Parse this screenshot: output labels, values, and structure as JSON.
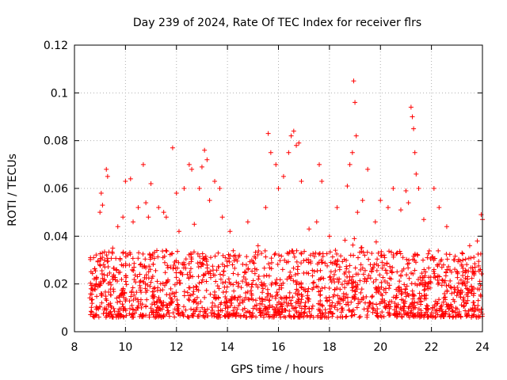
{
  "chart_data": {
    "type": "scatter",
    "title": "Day 239 of 2024, Rate Of TEC Index for receiver flrs",
    "xlabel": "GPS time / hours",
    "ylabel": "ROTI / TECUs",
    "xlim": [
      8,
      24
    ],
    "ylim": [
      0,
      0.12
    ],
    "x_ticks": [
      8,
      10,
      12,
      14,
      16,
      18,
      20,
      22,
      24
    ],
    "x_tick_labels": [
      "8",
      "10",
      "12",
      "14",
      "16",
      "18",
      "20",
      "22",
      "24"
    ],
    "y_ticks": [
      0,
      0.02,
      0.04,
      0.06,
      0.08,
      0.1,
      0.12
    ],
    "y_tick_labels": [
      "0",
      "0.02",
      "0.04",
      "0.06",
      "0.08",
      "0.1",
      "0.12"
    ],
    "grid": true,
    "marker": "+",
    "marker_color": "#ff0000",
    "series": [
      {
        "name": "ROTI",
        "points": [
          [
            8.65,
            0.018
          ],
          [
            8.75,
            0.031
          ],
          [
            8.85,
            0.022
          ],
          [
            9.0,
            0.05
          ],
          [
            9.05,
            0.058
          ],
          [
            9.1,
            0.053
          ],
          [
            9.25,
            0.068
          ],
          [
            9.3,
            0.065
          ],
          [
            9.5,
            0.035
          ],
          [
            9.7,
            0.044
          ],
          [
            9.9,
            0.048
          ],
          [
            10.0,
            0.063
          ],
          [
            10.2,
            0.064
          ],
          [
            10.3,
            0.046
          ],
          [
            10.5,
            0.052
          ],
          [
            10.7,
            0.07
          ],
          [
            10.8,
            0.054
          ],
          [
            10.9,
            0.048
          ],
          [
            11.0,
            0.062
          ],
          [
            11.3,
            0.052
          ],
          [
            11.5,
            0.05
          ],
          [
            11.6,
            0.048
          ],
          [
            11.85,
            0.077
          ],
          [
            12.0,
            0.058
          ],
          [
            12.1,
            0.042
          ],
          [
            12.3,
            0.06
          ],
          [
            12.5,
            0.07
          ],
          [
            12.6,
            0.068
          ],
          [
            12.7,
            0.045
          ],
          [
            12.9,
            0.06
          ],
          [
            13.0,
            0.069
          ],
          [
            13.1,
            0.076
          ],
          [
            13.2,
            0.072
          ],
          [
            13.3,
            0.055
          ],
          [
            13.5,
            0.063
          ],
          [
            13.7,
            0.06
          ],
          [
            13.8,
            0.048
          ],
          [
            14.1,
            0.042
          ],
          [
            14.3,
            0.032
          ],
          [
            14.8,
            0.046
          ],
          [
            15.2,
            0.036
          ],
          [
            15.5,
            0.052
          ],
          [
            15.6,
            0.083
          ],
          [
            15.7,
            0.075
          ],
          [
            15.9,
            0.07
          ],
          [
            16.0,
            0.06
          ],
          [
            16.2,
            0.065
          ],
          [
            16.4,
            0.075
          ],
          [
            16.5,
            0.082
          ],
          [
            16.6,
            0.084
          ],
          [
            16.7,
            0.078
          ],
          [
            16.8,
            0.079
          ],
          [
            16.9,
            0.063
          ],
          [
            17.2,
            0.043
          ],
          [
            17.5,
            0.046
          ],
          [
            17.6,
            0.07
          ],
          [
            17.7,
            0.063
          ],
          [
            18.0,
            0.04
          ],
          [
            18.3,
            0.052
          ],
          [
            18.7,
            0.061
          ],
          [
            18.8,
            0.07
          ],
          [
            18.9,
            0.075
          ],
          [
            18.95,
            0.105
          ],
          [
            19.0,
            0.096
          ],
          [
            19.05,
            0.082
          ],
          [
            19.1,
            0.05
          ],
          [
            19.3,
            0.055
          ],
          [
            19.5,
            0.068
          ],
          [
            19.8,
            0.046
          ],
          [
            20.0,
            0.055
          ],
          [
            20.3,
            0.052
          ],
          [
            20.5,
            0.06
          ],
          [
            20.8,
            0.051
          ],
          [
            21.0,
            0.059
          ],
          [
            21.1,
            0.054
          ],
          [
            21.2,
            0.094
          ],
          [
            21.25,
            0.09
          ],
          [
            21.3,
            0.085
          ],
          [
            21.35,
            0.075
          ],
          [
            21.4,
            0.066
          ],
          [
            21.5,
            0.06
          ],
          [
            21.7,
            0.047
          ],
          [
            22.1,
            0.06
          ],
          [
            22.3,
            0.052
          ],
          [
            22.6,
            0.044
          ],
          [
            22.9,
            0.03
          ],
          [
            23.2,
            0.033
          ],
          [
            23.5,
            0.036
          ],
          [
            23.8,
            0.038
          ],
          [
            23.95,
            0.049
          ],
          [
            24.0,
            0.047
          ]
        ],
        "note": "dense band of points between 0.005 and 0.035 across 8.6–24 h"
      }
    ]
  }
}
